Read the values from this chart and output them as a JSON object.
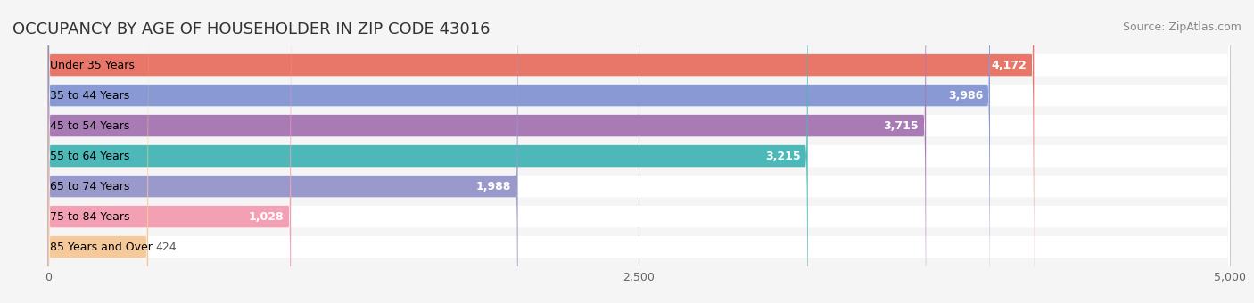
{
  "title": "OCCUPANCY BY AGE OF HOUSEHOLDER IN ZIP CODE 43016",
  "source": "Source: ZipAtlas.com",
  "categories": [
    "Under 35 Years",
    "35 to 44 Years",
    "45 to 54 Years",
    "55 to 64 Years",
    "65 to 74 Years",
    "75 to 84 Years",
    "85 Years and Over"
  ],
  "values": [
    4172,
    3986,
    3715,
    3215,
    1988,
    1028,
    424
  ],
  "bar_colors": [
    "#E8776A",
    "#8899D4",
    "#A97BB5",
    "#4DB8B8",
    "#9999CC",
    "#F4A0B4",
    "#F5C99A"
  ],
  "xlim": [
    0,
    5000
  ],
  "xticks": [
    0,
    2500,
    5000
  ],
  "background_color": "#f5f5f5",
  "bar_bg_color": "#e8e8e8",
  "title_fontsize": 13,
  "source_fontsize": 9,
  "label_fontsize": 9,
  "value_fontsize": 9
}
